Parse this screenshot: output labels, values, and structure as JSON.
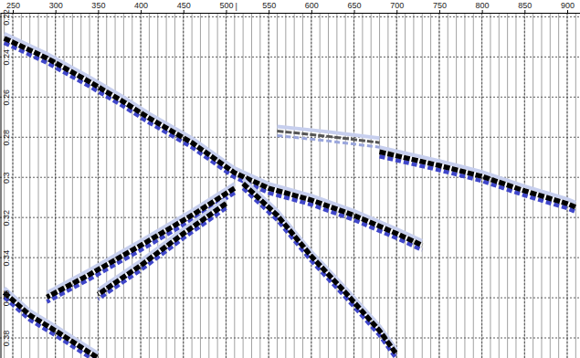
{
  "chart_data": {
    "type": "wiggle",
    "xlim": [
      235,
      915
    ],
    "xticks": [
      250,
      300,
      350,
      400,
      450,
      500,
      550,
      600,
      650,
      700,
      750,
      800,
      850,
      900
    ],
    "ylim": [
      0.218,
      0.39
    ],
    "yticks": [
      0.22,
      0.24,
      0.26,
      0.28,
      0.3,
      0.32,
      0.34,
      0.36,
      0.38
    ],
    "grid": true,
    "traces": [
      240,
      250,
      260,
      270,
      280,
      290,
      300,
      310,
      320,
      330,
      340,
      350,
      360,
      370,
      380,
      390,
      400,
      410,
      420,
      430,
      440,
      450,
      460,
      470,
      480,
      490,
      500,
      510,
      520,
      530,
      540,
      550,
      560,
      570,
      580,
      590,
      600,
      610,
      620,
      630,
      640,
      650,
      660,
      670,
      680,
      690,
      700,
      710,
      720,
      730,
      740,
      750,
      760,
      770,
      780,
      790,
      800,
      810,
      820,
      830,
      840,
      850,
      860,
      870,
      880,
      890,
      900,
      910
    ],
    "annotations": [
      {
        "text": "|",
        "x": 512
      }
    ],
    "series": [
      {
        "color": "#000000",
        "x": [
          240,
          290,
          340,
          380,
          410,
          460,
          510,
          550,
          600,
          650,
          700,
          730
        ],
        "values": [
          0.2307,
          0.2406,
          0.2524,
          0.2624,
          0.2705,
          0.2827,
          0.2977,
          0.3054,
          0.3113,
          0.3189,
          0.328,
          0.3339
        ]
      },
      {
        "color": "#000000",
        "x": [
          680,
          750,
          800,
          850,
          900,
          910
        ],
        "values": [
          0.2873,
          0.2941,
          0.2995,
          0.3067,
          0.3131,
          0.3149
        ]
      },
      {
        "color": "#555555",
        "x": [
          560,
          620,
          680
        ],
        "values": [
          0.2769,
          0.2796,
          0.2827
        ]
      },
      {
        "color": "#000000",
        "x": [
          520,
          560,
          600,
          640,
          680,
          700
        ],
        "values": [
          0.3031,
          0.3189,
          0.3393,
          0.3574,
          0.3764,
          0.3882
        ]
      },
      {
        "color": "#000000",
        "x": [
          510,
          460,
          400,
          340,
          290
        ],
        "values": [
          0.3054,
          0.3189,
          0.3339,
          0.3484,
          0.3597
        ]
      },
      {
        "color": "#000000",
        "x": [
          500,
          450,
          400,
          350
        ],
        "values": [
          0.313,
          0.328,
          0.3439,
          0.3583
        ]
      },
      {
        "color": "#000000",
        "x": [
          240,
          270,
          300,
          330,
          350
        ],
        "values": [
          0.3574,
          0.3687,
          0.3764,
          0.3846,
          0.39
        ]
      }
    ]
  }
}
